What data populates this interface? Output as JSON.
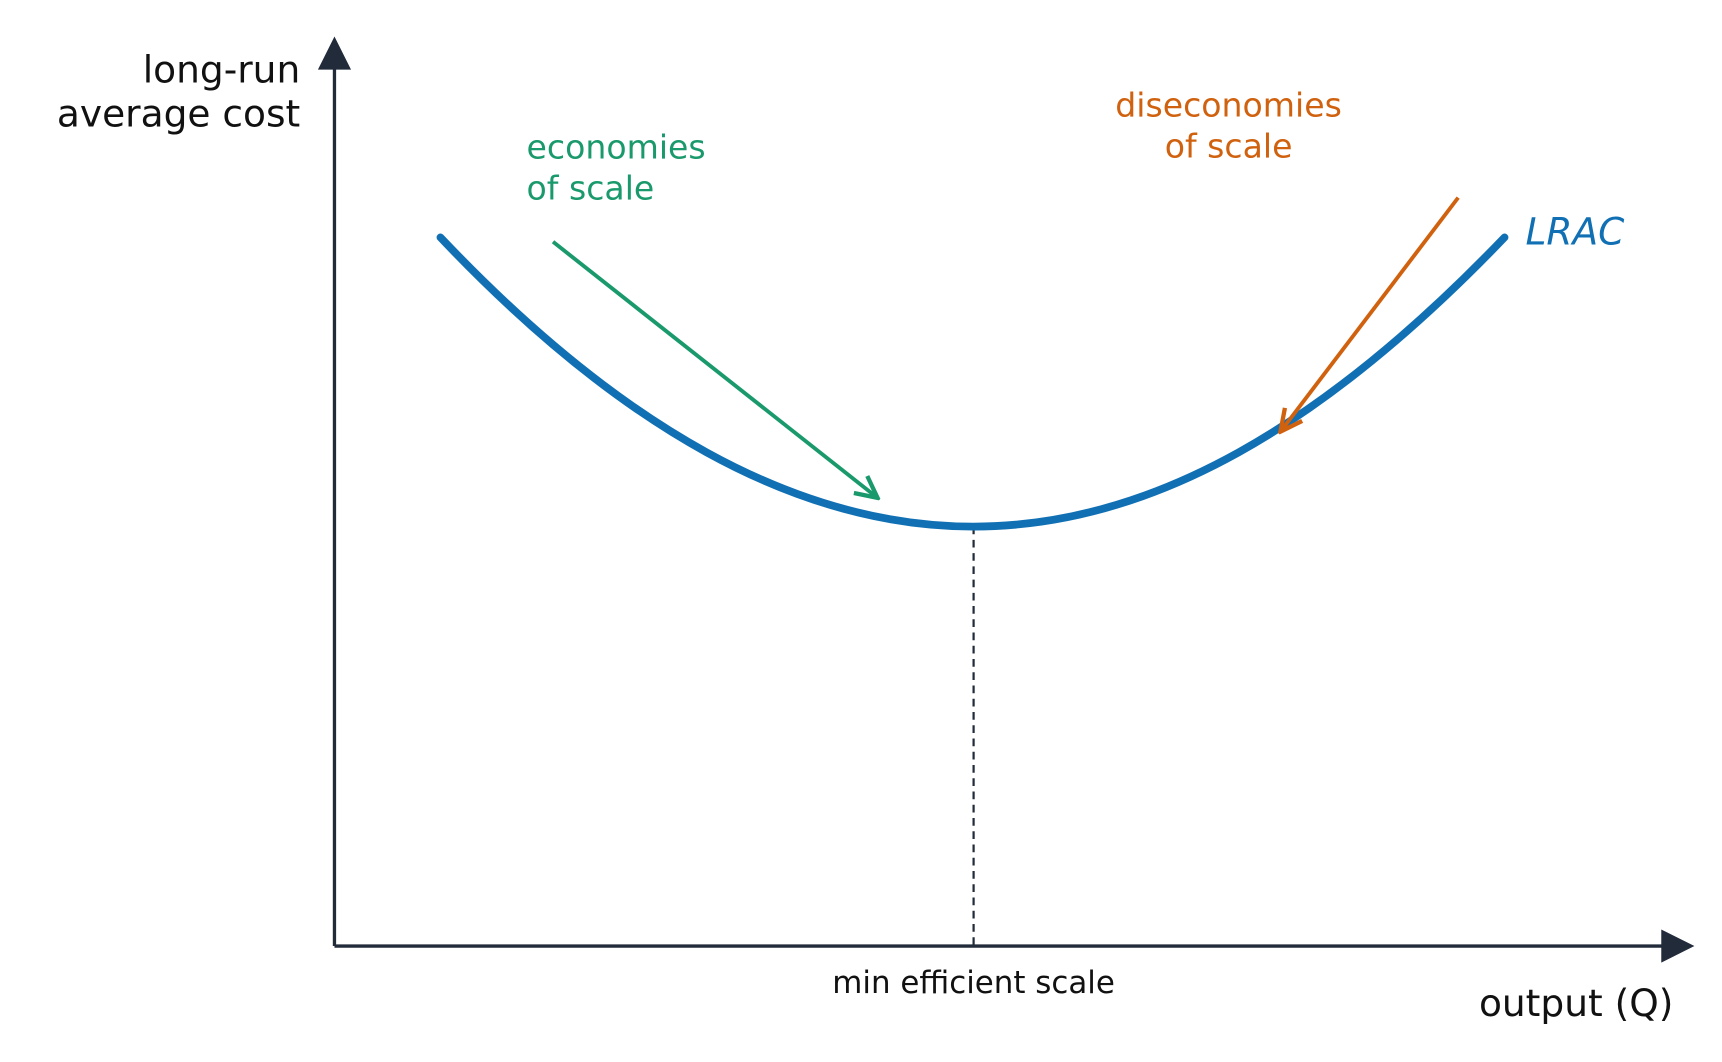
{
  "axes": {
    "y_label": [
      "long-run",
      "average cost"
    ],
    "x_label": "output (Q)"
  },
  "curve": {
    "label": "LRAC"
  },
  "annotations": [
    {
      "lines": [
        "economies",
        "of scale"
      ]
    },
    {
      "lines": [
        "diseconomies",
        "of scale"
      ]
    }
  ],
  "marker": {
    "label": "min efficient scale"
  }
}
